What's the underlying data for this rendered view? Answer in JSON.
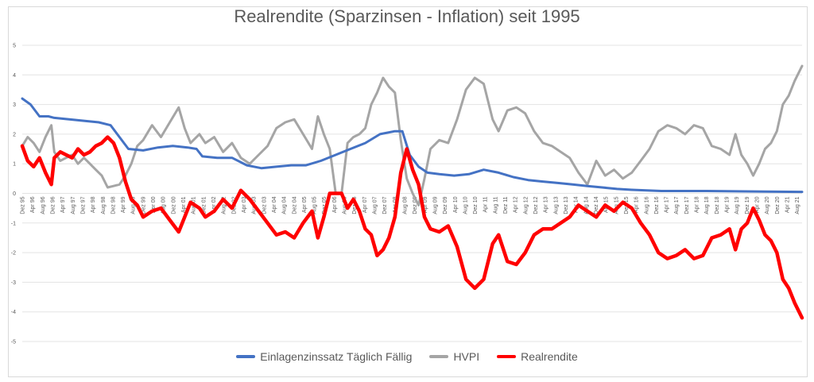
{
  "chart_data": {
    "type": "line",
    "title": "Realrendite (Sparzinsen - Inflation) seit 1995",
    "ylim": [
      -5,
      5
    ],
    "yticks": [
      5,
      4,
      3,
      2,
      1,
      0,
      -1,
      -2,
      -3,
      -4,
      -5
    ],
    "xlim": [
      1995.917,
      2022.25
    ],
    "grid": true,
    "legend_position": "bottom",
    "xtick_labels": [
      "Dez 95",
      "Apr 96",
      "Aug 96",
      "Dez 96",
      "Apr 97",
      "Aug 97",
      "Dez 97",
      "Apr 98",
      "Aug 98",
      "Dez 98",
      "Apr 99",
      "Aug 99",
      "Dez 99",
      "Apr 00",
      "Aug 00",
      "Dez 00",
      "Apr 01",
      "Aug 01",
      "Dez 01",
      "Apr 02",
      "Aug 02",
      "Dez 02",
      "Apr 03",
      "Aug 03",
      "Dez 03",
      "Apr 04",
      "Aug 04",
      "Dez 04",
      "Apr 05",
      "Aug 05",
      "Dez 05",
      "Apr 06",
      "Aug 06",
      "Dez 06",
      "Apr 07",
      "Aug 07",
      "Dez 07",
      "Apr 08",
      "Aug 08",
      "Dez 08",
      "Apr 09",
      "Aug 09",
      "Dez 09",
      "Apr 10",
      "Aug 10",
      "Dez 10",
      "Apr 11",
      "Aug 11",
      "Dez 11",
      "Apr 12",
      "Aug 12",
      "Dez 12",
      "Apr 13",
      "Aug 13",
      "Dez 13",
      "Apr 14",
      "Aug 14",
      "Dez 14",
      "Apr 15",
      "Aug 15",
      "Dez 15",
      "Apr 16",
      "Aug 16",
      "Dez 16",
      "Apr 17",
      "Aug 17",
      "Dez 17",
      "Apr 18",
      "Aug 18",
      "Dez 18",
      "Apr 19",
      "Aug 19",
      "Dez 19",
      "Apr 20",
      "Aug 20",
      "Dez 20",
      "Apr 21",
      "Aug 21"
    ],
    "series": [
      {
        "name": "Einlagenzinssatz Täglich Fällig",
        "color": "#4472c4",
        "x": [
          1995.917,
          1996.2,
          1996.5,
          1996.8,
          1997.0,
          1997.5,
          1998.0,
          1998.5,
          1998.9,
          1999.2,
          1999.5,
          2000.0,
          2000.5,
          2001.0,
          2001.5,
          2001.8,
          2002.0,
          2002.5,
          2003.0,
          2003.5,
          2004.0,
          2004.5,
          2005.0,
          2005.5,
          2006.0,
          2006.5,
          2007.0,
          2007.5,
          2008.0,
          2008.5,
          2008.75,
          2009.0,
          2009.3,
          2009.6,
          2010.0,
          2010.5,
          2011.0,
          2011.5,
          2012.0,
          2012.5,
          2013.0,
          2013.5,
          2014.0,
          2014.5,
          2015.0,
          2015.5,
          2016.0,
          2016.5,
          2017.0,
          2017.5,
          2018.0,
          2019.0,
          2020.0,
          2021.0,
          2022.25
        ],
        "values": [
          3.2,
          3.0,
          2.6,
          2.6,
          2.55,
          2.5,
          2.45,
          2.4,
          2.3,
          1.9,
          1.5,
          1.45,
          1.55,
          1.6,
          1.55,
          1.5,
          1.25,
          1.2,
          1.2,
          0.95,
          0.85,
          0.9,
          0.95,
          0.95,
          1.1,
          1.3,
          1.5,
          1.7,
          2.0,
          2.1,
          2.1,
          1.3,
          0.9,
          0.7,
          0.65,
          0.6,
          0.65,
          0.8,
          0.7,
          0.55,
          0.45,
          0.4,
          0.35,
          0.3,
          0.25,
          0.2,
          0.15,
          0.12,
          0.1,
          0.08,
          0.08,
          0.08,
          0.07,
          0.06,
          0.05
        ]
      },
      {
        "name": "HVPI",
        "color": "#a5a5a5",
        "x": [
          1995.917,
          1996.1,
          1996.3,
          1996.5,
          1996.7,
          1996.9,
          1997.0,
          1997.2,
          1997.4,
          1997.6,
          1997.8,
          1998.0,
          1998.2,
          1998.4,
          1998.6,
          1998.8,
          1999.0,
          1999.2,
          1999.4,
          1999.6,
          1999.8,
          2000.0,
          2000.3,
          2000.6,
          2000.9,
          2001.2,
          2001.4,
          2001.6,
          2001.9,
          2002.1,
          2002.4,
          2002.7,
          2003.0,
          2003.3,
          2003.6,
          2003.9,
          2004.2,
          2004.5,
          2004.8,
          2005.1,
          2005.4,
          2005.7,
          2005.9,
          2006.1,
          2006.3,
          2006.5,
          2006.7,
          2006.9,
          2007.1,
          2007.3,
          2007.5,
          2007.7,
          2007.9,
          2008.1,
          2008.3,
          2008.5,
          2008.7,
          2008.9,
          2009.1,
          2009.3,
          2009.5,
          2009.7,
          2010.0,
          2010.3,
          2010.6,
          2010.9,
          2011.2,
          2011.5,
          2011.8,
          2012.0,
          2012.3,
          2012.6,
          2012.9,
          2013.2,
          2013.5,
          2013.8,
          2014.1,
          2014.4,
          2014.7,
          2015.0,
          2015.3,
          2015.6,
          2015.9,
          2016.2,
          2016.5,
          2016.8,
          2017.1,
          2017.4,
          2017.7,
          2018.0,
          2018.3,
          2018.6,
          2018.9,
          2019.2,
          2019.5,
          2019.8,
          2020.0,
          2020.2,
          2020.4,
          2020.6,
          2020.8,
          2021.0,
          2021.2,
          2021.4,
          2021.6,
          2021.8,
          2022.0,
          2022.25
        ],
        "values": [
          1.6,
          1.9,
          1.7,
          1.4,
          1.9,
          2.3,
          1.4,
          1.1,
          1.2,
          1.3,
          1.0,
          1.2,
          1.0,
          0.8,
          0.6,
          0.2,
          0.25,
          0.3,
          0.6,
          1.0,
          1.6,
          1.8,
          2.3,
          1.9,
          2.4,
          2.9,
          2.2,
          1.7,
          2.0,
          1.7,
          1.9,
          1.4,
          1.7,
          1.2,
          1.0,
          1.3,
          1.6,
          2.2,
          2.4,
          2.5,
          2.0,
          1.5,
          2.6,
          2.0,
          1.5,
          0.0,
          0.0,
          1.7,
          1.9,
          2.0,
          2.2,
          3.0,
          3.4,
          3.9,
          3.6,
          3.4,
          1.8,
          0.5,
          0.0,
          -0.4,
          0.5,
          1.5,
          1.8,
          1.7,
          2.5,
          3.5,
          3.9,
          3.7,
          2.5,
          2.1,
          2.8,
          2.9,
          2.7,
          2.1,
          1.7,
          1.6,
          1.4,
          1.2,
          0.7,
          0.3,
          1.1,
          0.6,
          0.8,
          0.5,
          0.7,
          1.1,
          1.5,
          2.1,
          2.3,
          2.2,
          2.0,
          2.3,
          2.2,
          1.6,
          1.5,
          1.3,
          2.0,
          1.3,
          1.0,
          0.6,
          1.0,
          1.5,
          1.7,
          2.1,
          3.0,
          3.3,
          3.8,
          4.3
        ]
      },
      {
        "name": "Realrendite",
        "color": "#ff0000",
        "x": [
          1995.917,
          1996.1,
          1996.3,
          1996.5,
          1996.7,
          1996.9,
          1997.0,
          1997.2,
          1997.4,
          1997.6,
          1997.8,
          1998.0,
          1998.2,
          1998.4,
          1998.6,
          1998.8,
          1999.0,
          1999.2,
          1999.4,
          1999.6,
          1999.8,
          2000.0,
          2000.3,
          2000.6,
          2000.9,
          2001.2,
          2001.4,
          2001.6,
          2001.9,
          2002.1,
          2002.4,
          2002.7,
          2003.0,
          2003.3,
          2003.6,
          2003.9,
          2004.2,
          2004.5,
          2004.8,
          2005.1,
          2005.4,
          2005.7,
          2005.9,
          2006.1,
          2006.3,
          2006.5,
          2006.7,
          2006.9,
          2007.1,
          2007.3,
          2007.5,
          2007.7,
          2007.9,
          2008.1,
          2008.3,
          2008.5,
          2008.7,
          2008.9,
          2009.1,
          2009.3,
          2009.5,
          2009.7,
          2010.0,
          2010.3,
          2010.6,
          2010.9,
          2011.2,
          2011.5,
          2011.8,
          2012.0,
          2012.3,
          2012.6,
          2012.9,
          2013.2,
          2013.5,
          2013.8,
          2014.1,
          2014.4,
          2014.7,
          2015.0,
          2015.3,
          2015.6,
          2015.9,
          2016.2,
          2016.5,
          2016.8,
          2017.1,
          2017.4,
          2017.7,
          2018.0,
          2018.3,
          2018.6,
          2018.9,
          2019.2,
          2019.5,
          2019.8,
          2020.0,
          2020.2,
          2020.4,
          2020.6,
          2020.8,
          2021.0,
          2021.2,
          2021.4,
          2021.6,
          2021.8,
          2022.0,
          2022.25
        ],
        "values": [
          1.6,
          1.1,
          0.9,
          1.2,
          0.7,
          0.3,
          1.2,
          1.4,
          1.3,
          1.2,
          1.5,
          1.3,
          1.4,
          1.6,
          1.7,
          1.9,
          1.7,
          1.2,
          0.4,
          -0.2,
          -0.4,
          -0.8,
          -0.6,
          -0.5,
          -0.9,
          -1.3,
          -0.8,
          -0.3,
          -0.5,
          -0.8,
          -0.6,
          -0.2,
          -0.5,
          0.1,
          -0.2,
          -0.6,
          -1.0,
          -1.4,
          -1.3,
          -1.5,
          -1.0,
          -0.6,
          -1.5,
          -0.8,
          0.0,
          0.0,
          0.0,
          -0.5,
          -0.2,
          -0.6,
          -1.2,
          -1.4,
          -2.1,
          -1.9,
          -1.5,
          -0.8,
          0.7,
          1.5,
          0.8,
          0.3,
          -0.8,
          -1.2,
          -1.3,
          -1.1,
          -1.8,
          -2.9,
          -3.2,
          -2.9,
          -1.7,
          -1.4,
          -2.3,
          -2.4,
          -2.0,
          -1.4,
          -1.2,
          -1.2,
          -1.0,
          -0.8,
          -0.4,
          -0.6,
          -0.8,
          -0.4,
          -0.6,
          -0.3,
          -0.5,
          -1.0,
          -1.4,
          -2.0,
          -2.2,
          -2.1,
          -1.9,
          -2.2,
          -2.1,
          -1.5,
          -1.4,
          -1.2,
          -1.9,
          -1.2,
          -1.0,
          -0.5,
          -0.9,
          -1.4,
          -1.6,
          -2.0,
          -2.9,
          -3.2,
          -3.7,
          -4.2
        ]
      }
    ]
  }
}
